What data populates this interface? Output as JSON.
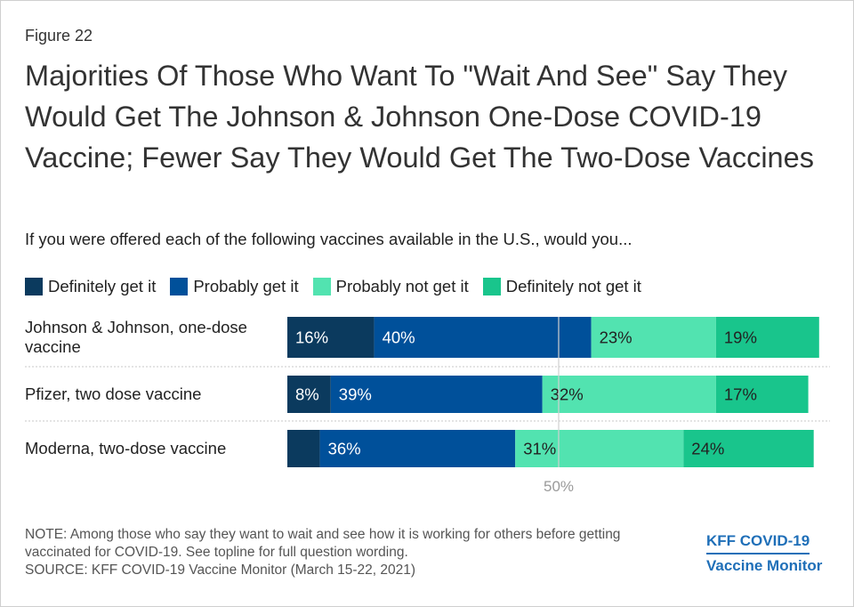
{
  "figure_label": "Figure 22",
  "title": "Majorities Of Those Who Want To \"Wait And See\" Say They Would Get The Johnson & Johnson One-Dose COVID-19 Vaccine; Fewer Say They Would Get The Two-Dose Vaccines",
  "subtitle": "If you were offered each of the following vaccines available in the U.S., would you...",
  "legend": [
    {
      "label": "Definitely get it",
      "color": "#0b3a5e"
    },
    {
      "label": "Probably get it",
      "color": "#00509a"
    },
    {
      "label": "Probably not get it",
      "color": "#52e3b0"
    },
    {
      "label": "Definitely not get it",
      "color": "#19c58c"
    }
  ],
  "chart_data": {
    "type": "bar",
    "orientation": "horizontal",
    "stacked": true,
    "categories": [
      "Johnson & Johnson, one-dose vaccine",
      "Pfizer, two dose vaccine",
      "Moderna, two-dose vaccine"
    ],
    "series": [
      {
        "name": "Definitely get it",
        "values": [
          16,
          8,
          6
        ],
        "labels": [
          "16%",
          "8%",
          ""
        ],
        "color": "#0b3a5e"
      },
      {
        "name": "Probably get it",
        "values": [
          40,
          39,
          36
        ],
        "labels": [
          "40%",
          "39%",
          "36%"
        ],
        "color": "#00509a"
      },
      {
        "name": "Probably not get it",
        "values": [
          23,
          32,
          31
        ],
        "labels": [
          "23%",
          "32%",
          "31%"
        ],
        "color": "#52e3b0"
      },
      {
        "name": "Definitely not get it",
        "values": [
          19,
          17,
          24
        ],
        "labels": [
          "19%",
          "17%",
          "24%"
        ],
        "color": "#19c58c"
      }
    ],
    "xlim": [
      0,
      100
    ],
    "reference_line": {
      "value": 50,
      "label": "50%"
    },
    "legend_position": "top"
  },
  "note": "NOTE: Among those who say they want to wait and see how it is working for others before getting vaccinated for COVID-19. See topline for full question wording.",
  "source": "SOURCE: KFF COVID-19 Vaccine Monitor (March 15-22, 2021)",
  "brand": {
    "line1": "KFF COVID-19",
    "line2": "Vaccine Monitor"
  }
}
